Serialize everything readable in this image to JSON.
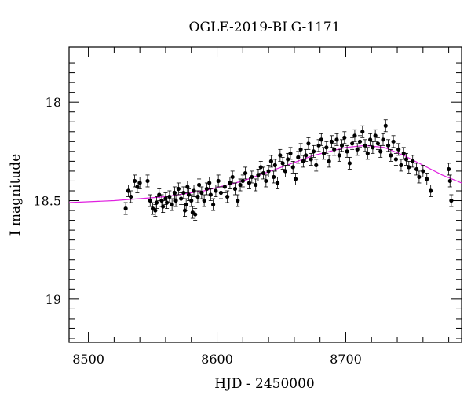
{
  "chart_data": {
    "type": "scatter",
    "title": "OGLE-2019-BLG-1171",
    "xlabel": "HJD - 2450000",
    "ylabel": "I magnitude",
    "xlim": [
      8485,
      8790
    ],
    "ylim": [
      19.22,
      17.72
    ],
    "y_inverted": true,
    "x_ticks": [
      8500,
      8600,
      8700
    ],
    "y_ticks": [
      18,
      18.5,
      19
    ],
    "grid": false,
    "legend": "none",
    "colors": {
      "points": "#000000",
      "model": "#e020e0"
    },
    "series": [
      {
        "kind": "points_with_errorbars",
        "err": 0.03,
        "points": [
          [
            8529,
            18.54
          ],
          [
            8531,
            18.45
          ],
          [
            8533,
            18.48
          ],
          [
            8536,
            18.4
          ],
          [
            8538,
            18.43
          ],
          [
            8540,
            18.41
          ],
          [
            8546,
            18.4
          ],
          [
            8548,
            18.5
          ],
          [
            8550,
            18.54
          ],
          [
            8552,
            18.55
          ],
          [
            8553,
            18.51
          ],
          [
            8555,
            18.47
          ],
          [
            8557,
            18.5
          ],
          [
            8558,
            18.53
          ],
          [
            8560,
            18.49
          ],
          [
            8561,
            18.51
          ],
          [
            8563,
            18.48
          ],
          [
            8565,
            18.52
          ],
          [
            8567,
            18.46
          ],
          [
            8568,
            18.5
          ],
          [
            8570,
            18.44
          ],
          [
            8572,
            18.49
          ],
          [
            8574,
            18.46
          ],
          [
            8575,
            18.55
          ],
          [
            8576,
            18.52
          ],
          [
            8577,
            18.43
          ],
          [
            8578,
            18.47
          ],
          [
            8580,
            18.5
          ],
          [
            8581,
            18.56
          ],
          [
            8582,
            18.45
          ],
          [
            8583,
            18.57
          ],
          [
            8585,
            18.48
          ],
          [
            8586,
            18.42
          ],
          [
            8588,
            18.46
          ],
          [
            8590,
            18.5
          ],
          [
            8592,
            18.44
          ],
          [
            8594,
            18.41
          ],
          [
            8595,
            18.47
          ],
          [
            8597,
            18.52
          ],
          [
            8599,
            18.45
          ],
          [
            8601,
            18.4
          ],
          [
            8603,
            18.46
          ],
          [
            8606,
            18.43
          ],
          [
            8608,
            18.48
          ],
          [
            8610,
            18.41
          ],
          [
            8612,
            18.38
          ],
          [
            8614,
            18.44
          ],
          [
            8616,
            18.5
          ],
          [
            8618,
            18.42
          ],
          [
            8620,
            18.4
          ],
          [
            8622,
            18.36
          ],
          [
            8625,
            18.41
          ],
          [
            8627,
            18.38
          ],
          [
            8630,
            18.42
          ],
          [
            8632,
            18.37
          ],
          [
            8634,
            18.33
          ],
          [
            8636,
            18.36
          ],
          [
            8638,
            18.4
          ],
          [
            8640,
            18.35
          ],
          [
            8642,
            18.3
          ],
          [
            8644,
            18.38
          ],
          [
            8645,
            18.32
          ],
          [
            8647,
            18.41
          ],
          [
            8649,
            18.27
          ],
          [
            8651,
            18.31
          ],
          [
            8653,
            18.35
          ],
          [
            8655,
            18.29
          ],
          [
            8657,
            18.26
          ],
          [
            8659,
            18.33
          ],
          [
            8661,
            18.39
          ],
          [
            8663,
            18.28
          ],
          [
            8665,
            18.24
          ],
          [
            8667,
            18.3
          ],
          [
            8669,
            18.27
          ],
          [
            8671,
            18.21
          ],
          [
            8673,
            18.29
          ],
          [
            8675,
            18.25
          ],
          [
            8677,
            18.32
          ],
          [
            8679,
            18.22
          ],
          [
            8681,
            18.19
          ],
          [
            8683,
            18.26
          ],
          [
            8685,
            18.23
          ],
          [
            8687,
            18.3
          ],
          [
            8689,
            18.2
          ],
          [
            8691,
            18.24
          ],
          [
            8693,
            18.19
          ],
          [
            8695,
            18.27
          ],
          [
            8697,
            18.22
          ],
          [
            8699,
            18.18
          ],
          [
            8701,
            18.25
          ],
          [
            8703,
            18.31
          ],
          [
            8705,
            18.21
          ],
          [
            8707,
            18.17
          ],
          [
            8709,
            18.24
          ],
          [
            8711,
            18.2
          ],
          [
            8713,
            18.15
          ],
          [
            8715,
            18.22
          ],
          [
            8717,
            18.26
          ],
          [
            8719,
            18.19
          ],
          [
            8721,
            18.23
          ],
          [
            8723,
            18.17
          ],
          [
            8725,
            18.21
          ],
          [
            8727,
            18.25
          ],
          [
            8729,
            18.19
          ],
          [
            8731,
            18.12
          ],
          [
            8733,
            18.22
          ],
          [
            8735,
            18.27
          ],
          [
            8737,
            18.2
          ],
          [
            8739,
            18.29
          ],
          [
            8741,
            18.24
          ],
          [
            8743,
            18.32
          ],
          [
            8745,
            18.26
          ],
          [
            8747,
            18.29
          ],
          [
            8749,
            18.33
          ],
          [
            8752,
            18.3
          ],
          [
            8755,
            18.34
          ],
          [
            8757,
            18.38
          ],
          [
            8760,
            18.35
          ],
          [
            8763,
            18.39
          ],
          [
            8766,
            18.45
          ],
          [
            8780,
            18.34
          ],
          [
            8781,
            18.4
          ],
          [
            8782,
            18.5
          ]
        ]
      },
      {
        "kind": "model_curve",
        "points": [
          [
            8485,
            18.51
          ],
          [
            8520,
            18.5
          ],
          [
            8560,
            18.48
          ],
          [
            8590,
            18.45
          ],
          [
            8620,
            18.4
          ],
          [
            8650,
            18.33
          ],
          [
            8675,
            18.27
          ],
          [
            8700,
            18.23
          ],
          [
            8715,
            18.22
          ],
          [
            8730,
            18.23
          ],
          [
            8745,
            18.27
          ],
          [
            8760,
            18.32
          ],
          [
            8775,
            18.37
          ],
          [
            8790,
            18.41
          ]
        ]
      }
    ]
  }
}
